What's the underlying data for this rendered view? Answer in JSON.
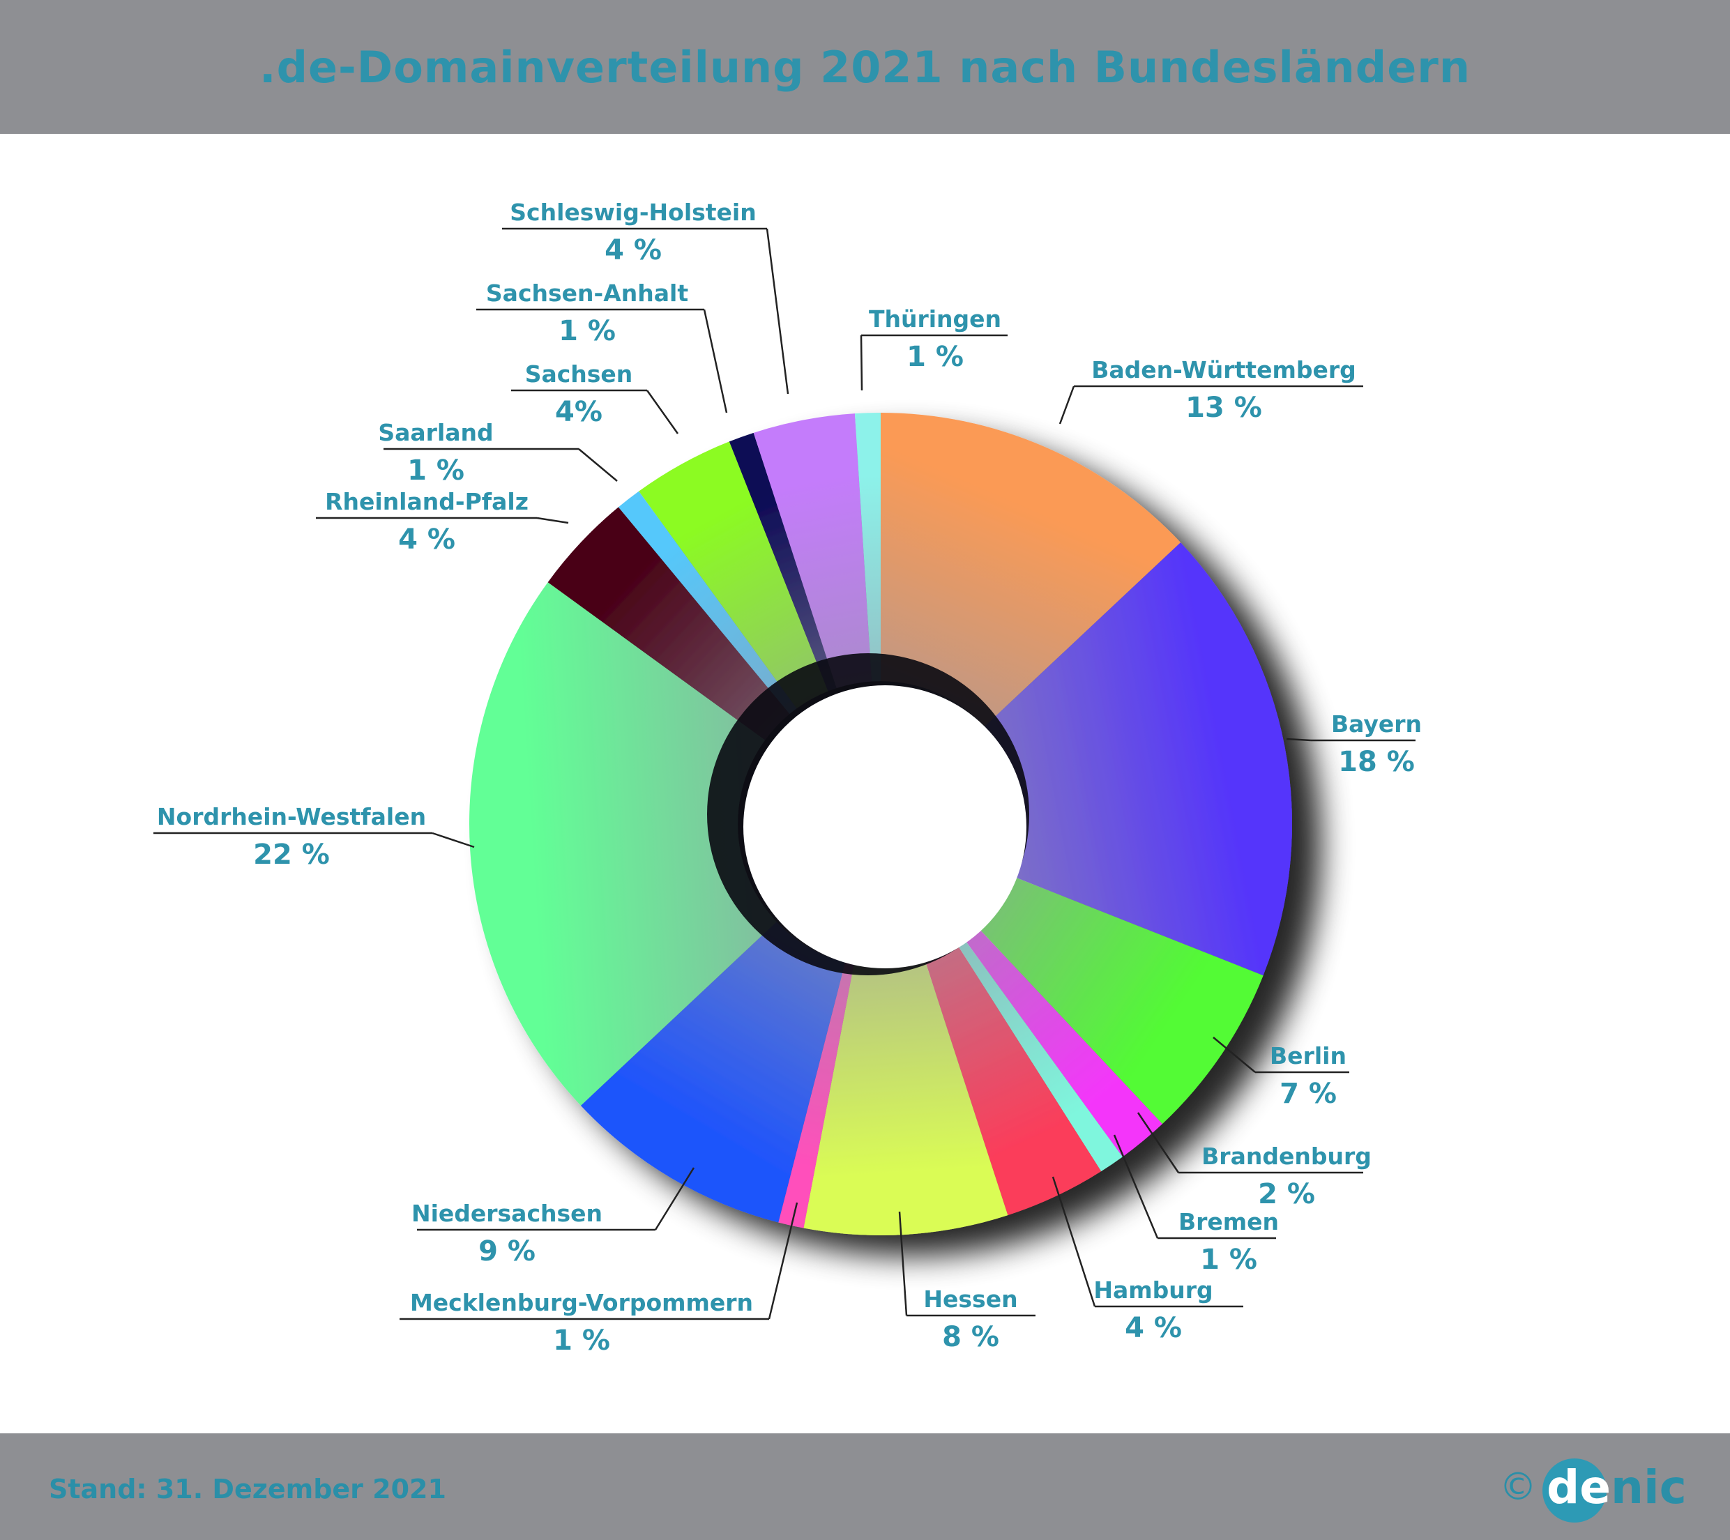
{
  "header": {
    "title": ".de-Domainverteilung 2021 nach Bundesländern"
  },
  "footer": {
    "stand": "Stand: 31. Dezember 2021"
  },
  "logo": {
    "copyright_symbol": "©",
    "part1": "de",
    "part2": "nic"
  },
  "colors": {
    "band": "#8e8f93",
    "accent": "#2e93ac",
    "logo_circle": "#2d9ab5",
    "footer_text": "#2a8fa8"
  },
  "chart_data": {
    "type": "pie",
    "donut": true,
    "title": ".de-Domainverteilung 2021 nach Bundesländern",
    "unit": "%",
    "slices": [
      {
        "name": "Baden-Württemberg",
        "value": 13,
        "label": "13 %",
        "color": "#fb9a55"
      },
      {
        "name": "Bayern",
        "value": 18,
        "label": "18 %",
        "color": "#5535fb"
      },
      {
        "name": "Berlin",
        "value": 7,
        "label": "7 %",
        "color": "#52fb34"
      },
      {
        "name": "Brandenburg",
        "value": 2,
        "label": "2 %",
        "color": "#f436fa"
      },
      {
        "name": "Bremen",
        "value": 1,
        "label": "1 %",
        "color": "#7ff6dd"
      },
      {
        "name": "Hamburg",
        "value": 4,
        "label": "4 %",
        "color": "#fb3d5a"
      },
      {
        "name": "Hessen",
        "value": 8,
        "label": "8 %",
        "color": "#dafc55"
      },
      {
        "name": "Mecklenburg-Vorpommern",
        "value": 1,
        "label": "1 %",
        "color": "#ff4fbb"
      },
      {
        "name": "Niedersachsen",
        "value": 9,
        "label": "9 %",
        "color": "#1f54fb"
      },
      {
        "name": "Nordrhein-Westfalen",
        "value": 22,
        "label": "22 %",
        "color": "#62ff96"
      },
      {
        "name": "Rheinland-Pfalz",
        "value": 4,
        "label": "4 %",
        "color": "#4a0318"
      },
      {
        "name": "Saarland",
        "value": 1,
        "label": "1 %",
        "color": "#55c8fb"
      },
      {
        "name": "Sachsen",
        "value": 4,
        "label": "4%",
        "color": "#8cfb22"
      },
      {
        "name": "Sachsen-Anhalt",
        "value": 1,
        "label": "1 %",
        "color": "#0c0a55"
      },
      {
        "name": "Schleswig-Holstein",
        "value": 4,
        "label": "4 %",
        "color": "#c47cfb"
      },
      {
        "name": "Thüringen",
        "value": 1,
        "label": "1 %",
        "color": "#8df2ea"
      }
    ]
  }
}
